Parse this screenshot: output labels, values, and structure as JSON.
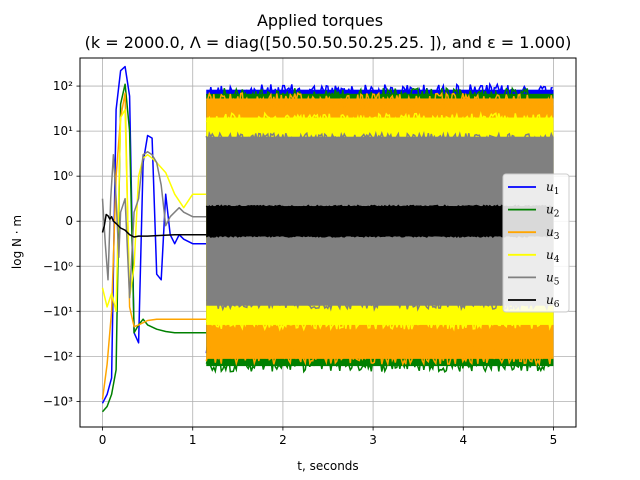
{
  "chart_data": {
    "type": "line",
    "title_line1": "Applied torques",
    "title_line2": "(k = 2000.0, Λ = diag([50.50.50.50.25.25. ]), and ε = 1.000)",
    "xlabel": "t, seconds",
    "ylabel": "log N · m",
    "yscale": "symlog",
    "xlim": [
      -0.25,
      5.25
    ],
    "x_ticks": [
      0,
      1,
      2,
      3,
      4,
      5
    ],
    "x_tick_labels": [
      "0",
      "1",
      "2",
      "3",
      "4",
      "5"
    ],
    "y_ticks": [
      100,
      10,
      1,
      0,
      -1,
      -10,
      -100,
      -1000
    ],
    "y_tick_labels": [
      "10²",
      "10¹",
      "10⁰",
      "0",
      "−10⁰",
      "−10¹",
      "−10²",
      "−10³"
    ],
    "grid": true,
    "legend_position": "center-right",
    "series": [
      {
        "name": "u1",
        "label_base": "u",
        "label_sub": "1",
        "color": "#0000ff",
        "transient": [
          [
            0,
            -1100
          ],
          [
            0.05,
            -700
          ],
          [
            0.1,
            -300
          ],
          [
            0.15,
            30
          ],
          [
            0.2,
            220
          ],
          [
            0.25,
            270
          ],
          [
            0.3,
            60
          ],
          [
            0.35,
            -30
          ],
          [
            0.4,
            -50
          ],
          [
            0.45,
            2
          ],
          [
            0.5,
            8
          ],
          [
            0.55,
            7
          ],
          [
            0.6,
            -1.5
          ],
          [
            0.65,
            -2
          ],
          [
            0.7,
            0.6
          ],
          [
            0.75,
            -0.3
          ],
          [
            0.8,
            -0.5
          ],
          [
            0.85,
            -0.3
          ],
          [
            0.9,
            -0.4
          ],
          [
            1.0,
            -0.5
          ],
          [
            1.1,
            -0.5
          ],
          [
            1.15,
            -0.5
          ]
        ],
        "osc_high": 110,
        "osc_low": -110
      },
      {
        "name": "u2",
        "label_base": "u",
        "label_sub": "2",
        "color": "#008000",
        "transient": [
          [
            0,
            -1700
          ],
          [
            0.05,
            -1300
          ],
          [
            0.1,
            -700
          ],
          [
            0.15,
            -200
          ],
          [
            0.2,
            40
          ],
          [
            0.25,
            110
          ],
          [
            0.3,
            10
          ],
          [
            0.35,
            -30
          ],
          [
            0.4,
            -20
          ],
          [
            0.45,
            -15
          ],
          [
            0.5,
            -20
          ],
          [
            0.6,
            -25
          ],
          [
            0.7,
            -28
          ],
          [
            0.8,
            -30
          ],
          [
            0.9,
            -30
          ],
          [
            1.0,
            -30
          ],
          [
            1.15,
            -30
          ]
        ],
        "osc_high": 90,
        "osc_low": -220
      },
      {
        "name": "u3",
        "label_base": "u",
        "label_sub": "3",
        "color": "#ffa500",
        "transient": [
          [
            0,
            -900
          ],
          [
            0.05,
            -150
          ],
          [
            0.1,
            -10
          ],
          [
            0.15,
            1
          ],
          [
            0.2,
            20
          ],
          [
            0.25,
            70
          ],
          [
            0.3,
            -8
          ],
          [
            0.35,
            -22
          ],
          [
            0.4,
            -20
          ],
          [
            0.5,
            -16
          ],
          [
            0.6,
            -15
          ],
          [
            0.7,
            -15
          ],
          [
            0.8,
            -15
          ],
          [
            0.9,
            -15
          ],
          [
            1.0,
            -15
          ],
          [
            1.15,
            -15
          ]
        ],
        "osc_high": 70,
        "osc_low": -150
      },
      {
        "name": "u4",
        "label_base": "u",
        "label_sub": "4",
        "color": "#ffff00",
        "transient": [
          [
            0,
            -3
          ],
          [
            0.05,
            -8
          ],
          [
            0.1,
            -4
          ],
          [
            0.15,
            -10
          ],
          [
            0.2,
            20
          ],
          [
            0.25,
            30
          ],
          [
            0.3,
            -5
          ],
          [
            0.35,
            -1
          ],
          [
            0.4,
            1
          ],
          [
            0.45,
            2.5
          ],
          [
            0.5,
            3
          ],
          [
            0.55,
            2.5
          ],
          [
            0.6,
            2
          ],
          [
            0.7,
            1.2
          ],
          [
            0.8,
            0.6
          ],
          [
            0.9,
            0.3
          ],
          [
            1.0,
            0.6
          ],
          [
            1.1,
            0.6
          ],
          [
            1.15,
            0.6
          ]
        ],
        "osc_high": 25,
        "osc_low": -25
      },
      {
        "name": "u5",
        "label_base": "u",
        "label_sub": "5",
        "color": "#808080",
        "transient": [
          [
            0,
            0.5
          ],
          [
            0.03,
            -0.5
          ],
          [
            0.06,
            -2
          ],
          [
            0.09,
            0.5
          ],
          [
            0.12,
            3
          ],
          [
            0.15,
            0.5
          ],
          [
            0.18,
            -0.8
          ],
          [
            0.2,
            0.2
          ],
          [
            0.25,
            0.5
          ],
          [
            0.3,
            -5
          ],
          [
            0.35,
            0.2
          ],
          [
            0.4,
            0.5
          ],
          [
            0.45,
            3
          ],
          [
            0.5,
            3.5
          ],
          [
            0.55,
            3
          ],
          [
            0.6,
            2
          ],
          [
            0.65,
            0.8
          ],
          [
            0.7,
            -0.1
          ],
          [
            0.75,
            0.1
          ],
          [
            0.8,
            0.2
          ],
          [
            0.85,
            0.3
          ],
          [
            0.9,
            0.2
          ],
          [
            1.0,
            0.1
          ],
          [
            1.15,
            0.1
          ]
        ],
        "osc_high": 9,
        "osc_low": -9
      },
      {
        "name": "u6",
        "label_base": "u",
        "label_sub": "6",
        "color": "#000000",
        "transient": [
          [
            0,
            -0.25
          ],
          [
            0.02,
            -0.1
          ],
          [
            0.04,
            0.15
          ],
          [
            0.06,
            0.12
          ],
          [
            0.08,
            0.05
          ],
          [
            0.1,
            0.1
          ],
          [
            0.12,
            0.0
          ],
          [
            0.15,
            -0.05
          ],
          [
            0.2,
            -0.15
          ],
          [
            0.25,
            -0.2
          ],
          [
            0.3,
            -0.3
          ],
          [
            0.35,
            -0.35
          ],
          [
            0.4,
            -0.33
          ],
          [
            0.5,
            -0.33
          ],
          [
            0.6,
            -0.32
          ],
          [
            0.8,
            -0.3
          ],
          [
            1.0,
            -0.3
          ],
          [
            1.15,
            -0.3
          ]
        ],
        "osc_high": 0.35,
        "osc_low": -0.35
      }
    ],
    "osc_start": 1.15,
    "osc_end": 5.0
  }
}
